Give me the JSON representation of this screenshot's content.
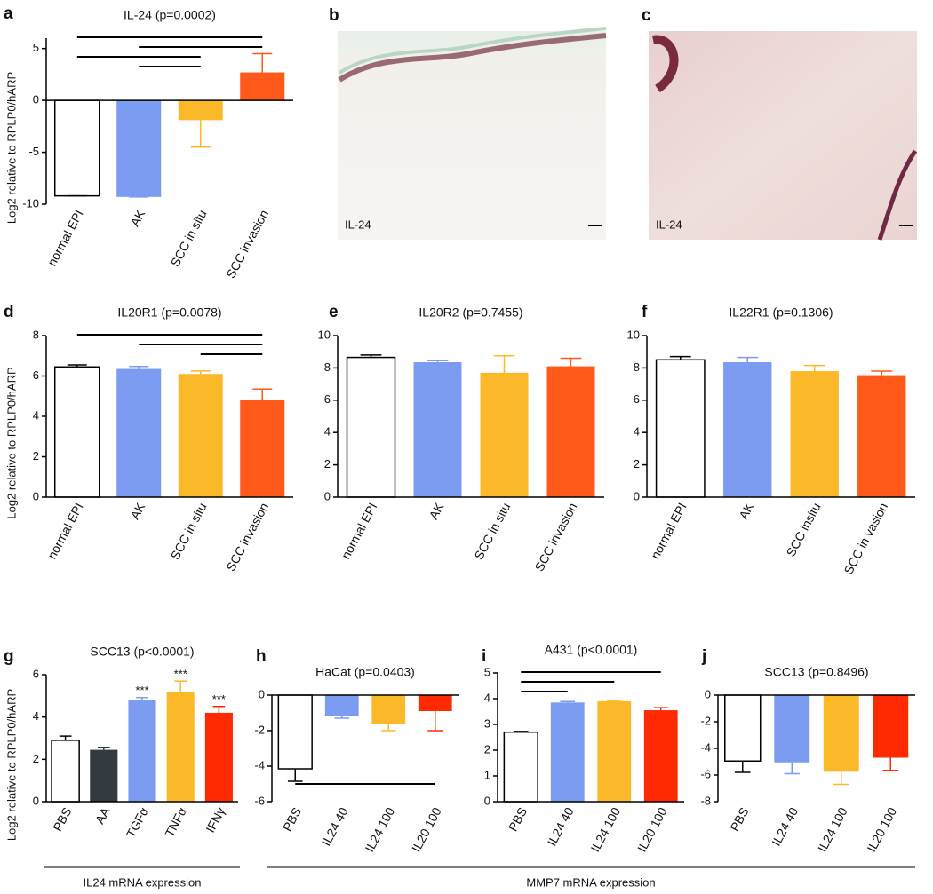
{
  "chart_data": [
    {
      "type": "bar",
      "panel": "a",
      "title": "IL-24 (p=0.0002)",
      "ylabel": "Log2 relative to RPLP0/hARP",
      "categories": [
        "normal EPI",
        "AK",
        "SCC in situ",
        "SCC invasion"
      ],
      "values": [
        -9.2,
        -9.3,
        -1.9,
        2.7
      ],
      "errors": [
        0,
        0,
        2.6,
        1.8
      ],
      "colors": [
        "#ffffff",
        "#7b9cf0",
        "#fbb829",
        "#ff5a1a"
      ],
      "ylim": [
        -10,
        6
      ],
      "yticks": [
        -10,
        -5,
        0,
        5
      ],
      "comparisons": [
        [
          "normal EPI",
          "SCC invasion"
        ],
        [
          "AK",
          "SCC invasion"
        ],
        [
          "normal EPI",
          "SCC in situ"
        ],
        [
          "AK",
          "SCC in situ"
        ]
      ]
    },
    {
      "type": "bar",
      "panel": "d",
      "title": "IL20R1 (p=0.0078)",
      "ylabel": "Log2 relative to RPLP0/hARP",
      "categories": [
        "normal EPI",
        "AK",
        "SCC in situ",
        "SCC invasion"
      ],
      "values": [
        6.45,
        6.35,
        6.1,
        4.8
      ],
      "errors": [
        0.1,
        0.12,
        0.15,
        0.55
      ],
      "colors": [
        "#ffffff",
        "#7b9cf0",
        "#fbb829",
        "#ff5a1a"
      ],
      "ylim": [
        0,
        8
      ],
      "yticks": [
        0,
        2,
        4,
        6,
        8
      ],
      "comparisons": [
        [
          "normal EPI",
          "SCC invasion"
        ],
        [
          "AK",
          "SCC invasion"
        ],
        [
          "SCC in situ",
          "SCC invasion"
        ]
      ]
    },
    {
      "type": "bar",
      "panel": "e",
      "title": "IL20R2 (p=0.7455)",
      "categories": [
        "normal EPI",
        "AK",
        "SCC in situ",
        "SCC invasion"
      ],
      "values": [
        8.65,
        8.35,
        7.7,
        8.1
      ],
      "errors": [
        0.15,
        0.1,
        1.05,
        0.5
      ],
      "colors": [
        "#ffffff",
        "#7b9cf0",
        "#fbb829",
        "#ff5a1a"
      ],
      "ylim": [
        0,
        10
      ],
      "yticks": [
        0,
        2,
        4,
        6,
        8,
        10
      ]
    },
    {
      "type": "bar",
      "panel": "f",
      "title": "IL22R1 (p=0.1306)",
      "categories": [
        "normal EPI",
        "AK",
        "SCC insitu",
        "SCC in vasion"
      ],
      "values": [
        8.5,
        8.35,
        7.8,
        7.55
      ],
      "errors": [
        0.2,
        0.3,
        0.35,
        0.25
      ],
      "colors": [
        "#ffffff",
        "#7b9cf0",
        "#fbb829",
        "#ff5a1a"
      ],
      "ylim": [
        0,
        10
      ],
      "yticks": [
        0,
        2,
        4,
        6,
        8,
        10
      ]
    },
    {
      "type": "bar",
      "panel": "g",
      "title": "SCC13 (p<0.0001)",
      "ylabel": "Log2 relative to RPLP0/hARP",
      "categories": [
        "PBS",
        "AA",
        "TGFα",
        "TNFα",
        "IFNγ"
      ],
      "values": [
        2.9,
        2.45,
        4.8,
        5.2,
        4.2
      ],
      "errors": [
        0.2,
        0.12,
        0.12,
        0.5,
        0.3
      ],
      "annotations": [
        null,
        null,
        "***",
        "***",
        "***"
      ],
      "colors": [
        "#ffffff",
        "#333a3f",
        "#7b9cf0",
        "#fbb829",
        "#ff2a00"
      ],
      "ylim": [
        0,
        6
      ],
      "yticks": [
        0,
        2,
        4,
        6
      ]
    },
    {
      "type": "bar",
      "panel": "h",
      "title": "HaCat (p=0.0403)",
      "categories": [
        "PBS",
        "IL24 40",
        "IL24 100",
        "IL20 100"
      ],
      "values": [
        -4.15,
        -1.15,
        -1.65,
        -0.9
      ],
      "errors": [
        0.7,
        0.15,
        0.35,
        1.1
      ],
      "colors": [
        "#ffffff",
        "#7b9cf0",
        "#fbb829",
        "#ff2a00"
      ],
      "ylim": [
        -6,
        0
      ],
      "yticks": [
        -6,
        -4,
        -2,
        0
      ],
      "comparisons": [
        [
          "PBS",
          "IL20 100"
        ]
      ]
    },
    {
      "type": "bar",
      "panel": "i",
      "title": "A431 (p<0.0001)",
      "categories": [
        "PBS",
        "IL24 40",
        "IL24 100",
        "IL20 100"
      ],
      "values": [
        2.7,
        3.85,
        3.9,
        3.55
      ],
      "errors": [
        0.03,
        0.04,
        0.03,
        0.1
      ],
      "colors": [
        "#ffffff",
        "#7b9cf0",
        "#fbb829",
        "#ff2a00"
      ],
      "ylim": [
        0,
        5
      ],
      "yticks": [
        0,
        1,
        2,
        3,
        4,
        5
      ],
      "comparisons": [
        [
          "PBS",
          "IL20 100"
        ],
        [
          "PBS",
          "IL24 100"
        ],
        [
          "PBS",
          "IL24 40"
        ]
      ]
    },
    {
      "type": "bar",
      "panel": "j",
      "title": "SCC13 (p=0.8496)",
      "categories": [
        "PBS",
        "IL24 40",
        "IL24 100",
        "IL20 100"
      ],
      "values": [
        -4.95,
        -5.05,
        -5.75,
        -4.7
      ],
      "errors": [
        0.85,
        0.85,
        0.95,
        0.95
      ],
      "colors": [
        "#ffffff",
        "#7b9cf0",
        "#fbb829",
        "#ff2a00"
      ],
      "ylim": [
        -8,
        0
      ],
      "yticks": [
        -8,
        -6,
        -4,
        -2,
        0
      ]
    }
  ],
  "images": [
    {
      "panel": "b",
      "label": "IL-24"
    },
    {
      "panel": "c",
      "label": "IL-24"
    }
  ],
  "footer_labels": [
    "IL24 mRNA expression",
    "MMP7 mRNA expression"
  ]
}
